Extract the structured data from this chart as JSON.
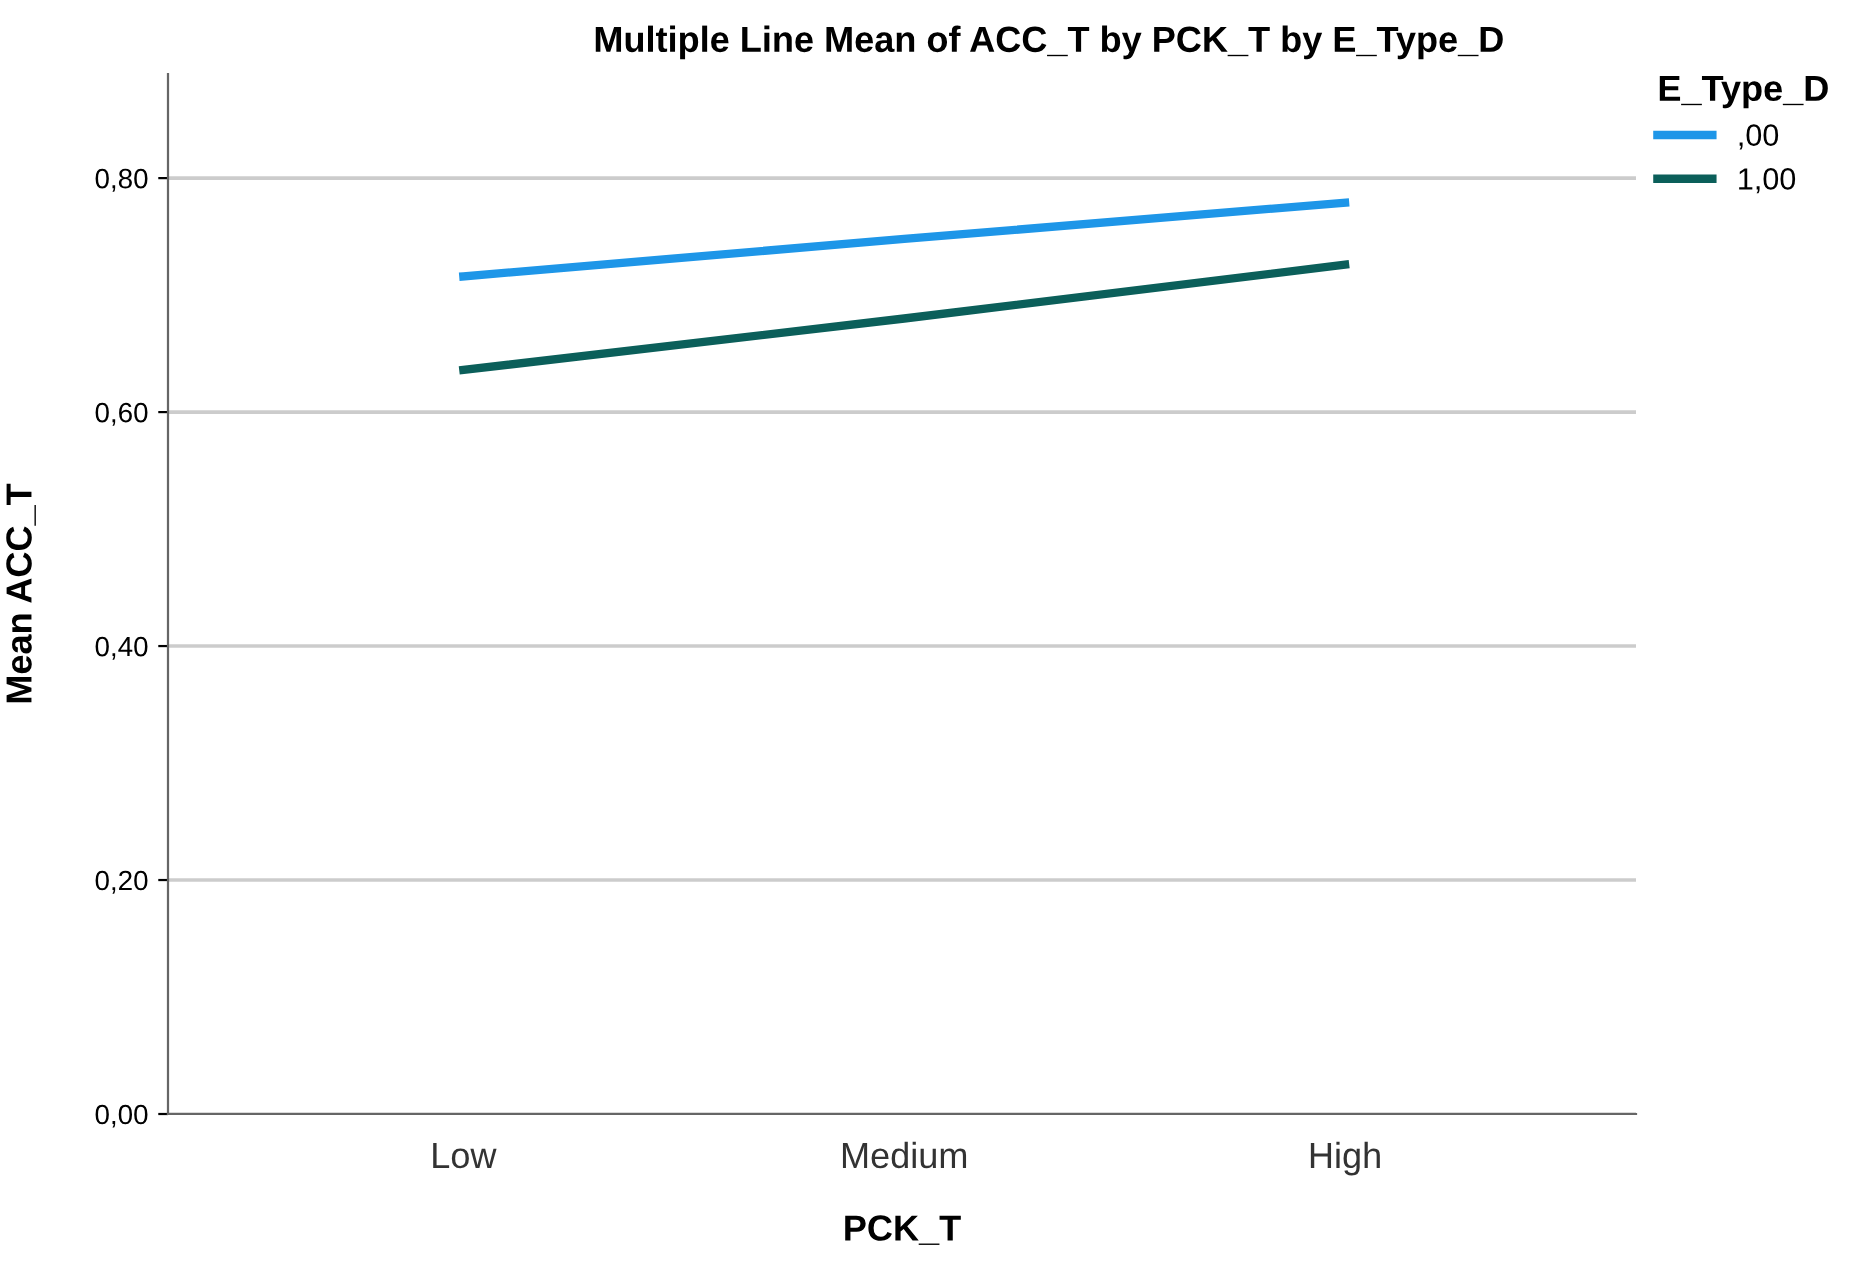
{
  "chart_data": {
    "type": "line",
    "title": "Multiple Line Mean of ACC_T by PCK_T by E_Type_D",
    "xlabel": "PCK_T",
    "ylabel": "Mean ACC_T",
    "legend_title": "E_Type_D",
    "categories": [
      "Low",
      "Medium",
      "High"
    ],
    "series": [
      {
        "name": ",00",
        "color": "#1e96e8",
        "values": [
          0.716,
          0.748,
          0.779
        ]
      },
      {
        "name": "1,00",
        "color": "#0b5f5a",
        "values": [
          0.636,
          0.68,
          0.726
        ]
      }
    ],
    "ylim": [
      0,
      0.889
    ],
    "yticks": [
      {
        "value": 0,
        "label": "0,00"
      },
      {
        "value": 0.2,
        "label": "0,20"
      },
      {
        "value": 0.4,
        "label": "0,40"
      },
      {
        "value": 0.6,
        "label": "0,60"
      },
      {
        "value": 0.8,
        "label": "0,80"
      }
    ],
    "grid": "y",
    "legend": "top right",
    "marker": "none",
    "line_style": "solid"
  }
}
